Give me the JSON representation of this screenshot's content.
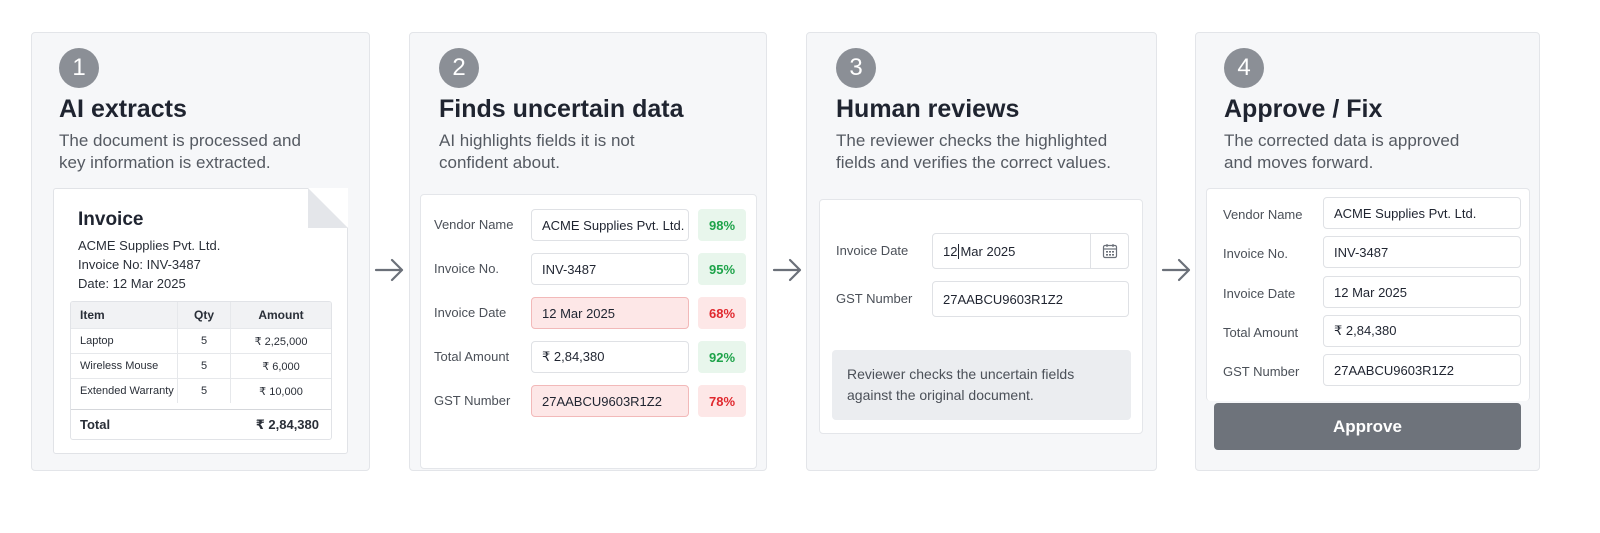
{
  "steps": [
    {
      "number": "1",
      "title": "AI extracts",
      "desc": [
        "The document is processed and",
        "key information is extracted."
      ]
    },
    {
      "number": "2",
      "title": "Finds uncertain data",
      "desc": [
        "AI highlights fields it is not",
        "confident about."
      ]
    },
    {
      "number": "3",
      "title": "Human reviews",
      "desc": [
        "The reviewer checks the highlighted",
        "fields and verifies the correct values."
      ]
    },
    {
      "number": "4",
      "title": "Approve / Fix",
      "desc": [
        "The corrected data is approved",
        "and moves forward."
      ]
    }
  ],
  "invoice": {
    "title": "Invoice",
    "company": "ACME Supplies Pvt. Ltd.",
    "number_line": "Invoice No: INV-3487",
    "date_line": "Date: 12 Mar 2025",
    "headers": [
      "Item",
      "Qty",
      "Amount"
    ],
    "rows": [
      [
        "Laptop",
        "5",
        "₹ 2,25,000"
      ],
      [
        "Wireless Mouse",
        "5",
        "₹ 6,000"
      ],
      [
        "Extended Warranty",
        "5",
        "₹ 10,000"
      ]
    ],
    "total_label": "Total",
    "total_value": "₹ 2,84,380"
  },
  "extraction": {
    "fields": [
      {
        "label": "Vendor Name",
        "value": "ACME Supplies Pvt. Ltd.",
        "confidence": "98%",
        "status": "high"
      },
      {
        "label": "Invoice No.",
        "value": "INV-3487",
        "confidence": "95%",
        "status": "high"
      },
      {
        "label": "Invoice Date",
        "value": "12 Mar 2025",
        "confidence": "68%",
        "status": "low"
      },
      {
        "label": "Total Amount",
        "value": "₹ 2,84,380",
        "confidence": "92%",
        "status": "high"
      },
      {
        "label": "GST Number",
        "value": "27AABCU9603R1Z2",
        "confidence": "78%",
        "status": "low"
      }
    ]
  },
  "review": {
    "date_label": "Invoice Date",
    "date_value_before_caret": "12",
    "date_value_after_caret": "Mar 2025",
    "gst_label": "GST Number",
    "gst_value": "27AABCU9603R1Z2",
    "note": [
      "Reviewer checks the uncertain fields",
      "against the original document."
    ]
  },
  "approval": {
    "fields": [
      {
        "label": "Vendor Name",
        "value": "ACME Supplies Pvt. Ltd."
      },
      {
        "label": "Invoice No.",
        "value": "INV-3487"
      },
      {
        "label": "Invoice Date",
        "value": "12 Mar 2025"
      },
      {
        "label": "Total Amount",
        "value": "₹ 2,84,380"
      },
      {
        "label": "GST Number",
        "value": "27AABCU9603R1Z2"
      }
    ],
    "button_label": "Approve"
  },
  "colors": {
    "badge": "#8b8f96",
    "high_confidence": "#1ea34a",
    "low_confidence": "#e0282e",
    "low_highlight": "#fde7e7",
    "approve_button": "#6e737b"
  },
  "icons": {
    "arrow": "arrow-right-icon",
    "calendar": "calendar-icon"
  }
}
